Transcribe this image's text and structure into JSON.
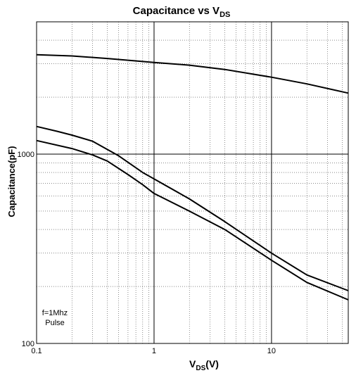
{
  "chart_data": {
    "type": "line",
    "title": {
      "main": "Capacitance vs V",
      "sub": "DS"
    },
    "xlabel": {
      "main": "V",
      "sub": "DS",
      "suffix": "(V)"
    },
    "ylabel": "Capacitance(pF)",
    "x_scale": "log",
    "y_scale": "log",
    "xlim": [
      0.1,
      45
    ],
    "ylim": [
      100,
      5000
    ],
    "x_ticks": [
      {
        "value": 0.1,
        "label": "0.1"
      },
      {
        "value": 1,
        "label": "1"
      },
      {
        "value": 10,
        "label": "10"
      }
    ],
    "y_ticks": [
      {
        "value": 100,
        "label": "100"
      },
      {
        "value": 1000,
        "label": "1000"
      }
    ],
    "grid": true,
    "annotation": [
      "f=1Mhz",
      "Pulse"
    ],
    "series": [
      {
        "x": [
          0.1,
          0.2,
          0.4,
          1,
          2,
          4,
          10,
          20,
          45
        ],
        "y": [
          3350,
          3300,
          3200,
          3050,
          2950,
          2800,
          2550,
          2350,
          2100
        ]
      },
      {
        "x": [
          0.1,
          0.15,
          0.2,
          0.3,
          0.5,
          0.8,
          1,
          2,
          4,
          10,
          20,
          45
        ],
        "y": [
          1400,
          1320,
          1260,
          1170,
          980,
          800,
          740,
          580,
          440,
          300,
          230,
          190
        ]
      },
      {
        "x": [
          0.1,
          0.2,
          0.3,
          0.4,
          0.6,
          0.8,
          1,
          2,
          4,
          10,
          20,
          45
        ],
        "y": [
          1180,
          1070,
          990,
          920,
          780,
          690,
          620,
          500,
          400,
          275,
          210,
          170
        ]
      }
    ]
  }
}
